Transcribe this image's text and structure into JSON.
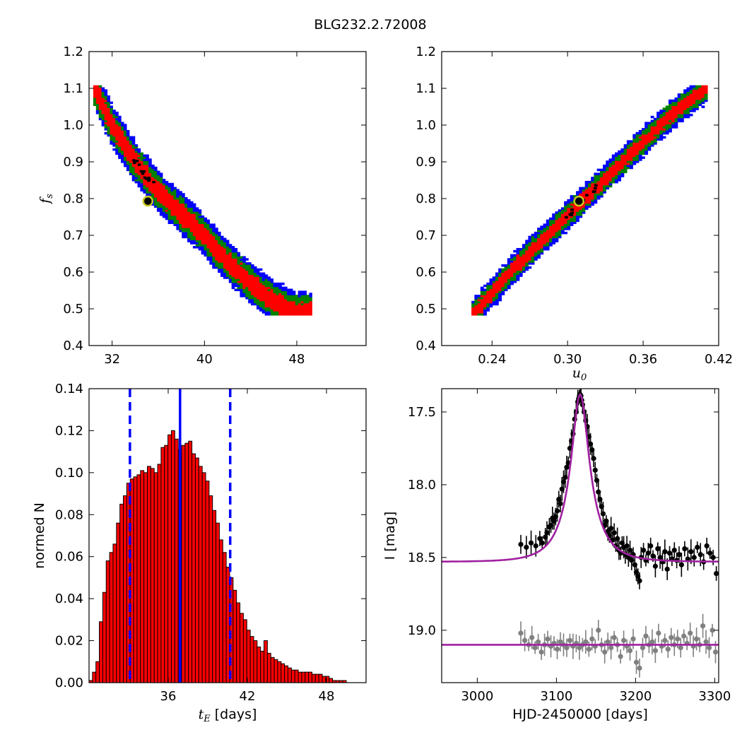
{
  "figure": {
    "title": "BLG232.2.72008"
  },
  "chart_data": [
    {
      "id": "fs_vs_tE",
      "type": "heatmap",
      "title": "",
      "xlabel": "",
      "ylabel": "f_s",
      "xlim": [
        30,
        54
      ],
      "ylim": [
        0.4,
        1.2
      ],
      "xticks": [
        32,
        40,
        48
      ],
      "yticks": [
        0.4,
        0.5,
        0.6,
        0.7,
        0.8,
        0.9,
        1.0,
        1.1,
        1.2
      ],
      "xtick_labels": [
        "32",
        "40",
        "48"
      ],
      "ytick_labels": [
        "0.4",
        "0.5",
        "0.6",
        "0.7",
        "0.8",
        "0.9",
        "1.0",
        "1.1",
        "1.2"
      ],
      "band": {
        "ridge": [
          [
            30.5,
            1.1
          ],
          [
            32.0,
            1.0
          ],
          [
            34.0,
            0.9
          ],
          [
            36.0,
            0.82
          ],
          [
            38.0,
            0.76
          ],
          [
            40.0,
            0.7
          ],
          [
            42.0,
            0.63
          ],
          [
            44.0,
            0.57
          ],
          [
            46.0,
            0.52
          ],
          [
            48.0,
            0.49
          ],
          [
            49.2,
            0.49
          ]
        ],
        "half_width_blue": 0.055,
        "half_width_green": 0.042,
        "half_width_red": 0.026
      },
      "colors": {
        "outer": "#0000ff",
        "middle": "#008000",
        "inner": "#ff0000",
        "peak": "#000000",
        "marker": "#c8c820"
      },
      "best_fit": {
        "x": 35.1,
        "y": 0.793
      }
    },
    {
      "id": "fs_vs_u0",
      "type": "heatmap",
      "title": "",
      "xlabel": "u_0",
      "ylabel": "",
      "xlim": [
        0.2,
        0.42
      ],
      "ylim": [
        0.4,
        1.2
      ],
      "xticks": [
        0.24,
        0.3,
        0.36,
        0.42
      ],
      "yticks": [
        0.4,
        0.5,
        0.6,
        0.7,
        0.8,
        0.9,
        1.0,
        1.1,
        1.2
      ],
      "xtick_labels": [
        "0.24",
        "0.30",
        "0.36",
        "0.42"
      ],
      "ytick_labels": [
        "0.4",
        "0.5",
        "0.6",
        "0.7",
        "0.8",
        "0.9",
        "1.0",
        "1.1",
        "1.2"
      ],
      "band": {
        "ridge": [
          [
            0.225,
            0.485
          ],
          [
            0.26,
            0.62
          ],
          [
            0.29,
            0.72
          ],
          [
            0.32,
            0.82
          ],
          [
            0.35,
            0.92
          ],
          [
            0.38,
            1.02
          ],
          [
            0.41,
            1.1
          ]
        ],
        "half_width_blue": 0.04,
        "half_width_green": 0.03,
        "half_width_red": 0.018
      },
      "colors": {
        "outer": "#0000ff",
        "middle": "#008000",
        "inner": "#ff0000",
        "peak": "#000000",
        "marker": "#c8c820"
      },
      "best_fit": {
        "x": 0.309,
        "y": 0.793
      }
    },
    {
      "id": "tE_histogram",
      "type": "bar",
      "title": "",
      "xlabel": "t_E  [days]",
      "ylabel": "normed N",
      "xlim": [
        30,
        51
      ],
      "ylim": [
        0.0,
        0.14
      ],
      "xticks": [
        36,
        42,
        48
      ],
      "xtick_labels": [
        "36",
        "42",
        "48"
      ],
      "yticks": [
        0.0,
        0.02,
        0.04,
        0.06,
        0.08,
        0.1,
        0.12,
        0.14
      ],
      "ytick_labels": [
        "0.00",
        "0.02",
        "0.04",
        "0.06",
        "0.08",
        "0.10",
        "0.12",
        "0.14"
      ],
      "bin_start": 30.0,
      "bin_width": 0.26,
      "values": [
        0.001,
        0.005,
        0.01,
        0.029,
        0.043,
        0.058,
        0.062,
        0.066,
        0.076,
        0.085,
        0.089,
        0.095,
        0.097,
        0.098,
        0.099,
        0.101,
        0.1,
        0.103,
        0.102,
        0.1,
        0.104,
        0.112,
        0.113,
        0.118,
        0.12,
        0.116,
        0.111,
        0.113,
        0.114,
        0.115,
        0.109,
        0.107,
        0.103,
        0.1,
        0.096,
        0.089,
        0.082,
        0.076,
        0.068,
        0.062,
        0.055,
        0.05,
        0.044,
        0.038,
        0.033,
        0.03,
        0.025,
        0.022,
        0.02,
        0.017,
        0.015,
        0.02,
        0.014,
        0.012,
        0.011,
        0.01,
        0.009,
        0.008,
        0.007,
        0.006,
        0.006,
        0.005,
        0.005,
        0.005,
        0.005,
        0.004,
        0.004,
        0.004,
        0.003,
        0.003,
        0.002,
        0.001,
        0.001,
        0.001,
        0.001
      ],
      "bar_color": "#ff0000",
      "median": 36.9,
      "interval": [
        33.1,
        40.7
      ],
      "line_color": "#0000ff"
    },
    {
      "id": "light_curve",
      "type": "scatter",
      "title": "",
      "xlabel": "HJD-2450000 [days]",
      "ylabel": "I [mag]",
      "xlim": [
        2955,
        3305
      ],
      "ylim": [
        19.36,
        17.34
      ],
      "xticks": [
        3000,
        3100,
        3200,
        3300
      ],
      "xtick_labels": [
        "3000",
        "3100",
        "3200",
        "3300"
      ],
      "yticks": [
        17.5,
        18.0,
        18.5,
        19.0
      ],
      "ytick_labels": [
        "17.5",
        "18.0",
        "18.5",
        "19.0"
      ],
      "model": {
        "t0": 3130,
        "baseline": 18.53,
        "peak": 17.38,
        "tE": 37,
        "u0": 0.31
      },
      "residual_baseline": 19.1,
      "series": [
        {
          "color": "#000000",
          "x": [
            3055,
            3062,
            3068,
            3074,
            3079,
            3082,
            3086,
            3088,
            3091,
            3093,
            3095,
            3097,
            3099,
            3101,
            3103,
            3105,
            3107,
            3109,
            3111,
            3113,
            3115,
            3117,
            3119,
            3121,
            3123,
            3125,
            3127,
            3128,
            3129,
            3130,
            3131,
            3132,
            3133,
            3135,
            3137,
            3139,
            3141,
            3143,
            3145,
            3147,
            3149,
            3151,
            3153,
            3155,
            3157,
            3159,
            3161,
            3163,
            3165,
            3167,
            3169,
            3171,
            3173,
            3175,
            3177,
            3179,
            3181,
            3183,
            3185,
            3187,
            3189,
            3191,
            3193,
            3195,
            3197,
            3199,
            3201,
            3203,
            3205,
            3207,
            3210,
            3213,
            3216,
            3219,
            3222,
            3225,
            3228,
            3231,
            3234,
            3237,
            3240,
            3243,
            3246,
            3249,
            3252,
            3255,
            3258,
            3262,
            3266,
            3270,
            3274,
            3278,
            3282,
            3286,
            3290,
            3294,
            3298,
            3302
          ],
          "y": [
            18.41,
            18.43,
            18.4,
            18.42,
            18.37,
            18.4,
            18.36,
            18.33,
            18.29,
            18.28,
            18.23,
            18.25,
            18.22,
            18.18,
            18.1,
            18.13,
            18.03,
            17.98,
            17.95,
            17.88,
            17.85,
            17.75,
            17.7,
            17.65,
            17.55,
            17.5,
            17.43,
            17.41,
            17.39,
            17.38,
            17.39,
            17.42,
            17.45,
            17.5,
            17.56,
            17.6,
            17.67,
            17.72,
            17.76,
            17.82,
            17.9,
            17.97,
            18.05,
            18.1,
            18.15,
            18.2,
            18.28,
            18.25,
            18.32,
            18.35,
            18.3,
            18.38,
            18.33,
            18.42,
            18.37,
            18.45,
            18.47,
            18.4,
            18.43,
            18.48,
            18.42,
            18.5,
            18.45,
            18.52,
            18.48,
            18.55,
            18.6,
            18.63,
            18.66,
            18.5,
            18.45,
            18.52,
            18.47,
            18.42,
            18.49,
            18.56,
            18.44,
            18.5,
            18.53,
            18.46,
            18.58,
            18.47,
            18.51,
            18.45,
            18.52,
            18.48,
            18.55,
            18.44,
            18.51,
            18.46,
            18.5,
            18.43,
            18.48,
            18.53,
            18.42,
            18.47,
            18.5,
            18.61
          ]
        },
        {
          "color": "#808080",
          "x": [
            3055,
            3060,
            3065,
            3069,
            3073,
            3077,
            3081,
            3085,
            3089,
            3093,
            3097,
            3101,
            3105,
            3109,
            3113,
            3117,
            3121,
            3125,
            3129,
            3133,
            3137,
            3141,
            3145,
            3149,
            3153,
            3157,
            3161,
            3165,
            3169,
            3173,
            3177,
            3181,
            3185,
            3189,
            3193,
            3197,
            3201,
            3205,
            3209,
            3213,
            3217,
            3221,
            3225,
            3229,
            3233,
            3237,
            3241,
            3245,
            3249,
            3253,
            3257,
            3261,
            3265,
            3269,
            3273,
            3277,
            3281,
            3285,
            3289,
            3293,
            3297,
            3301
          ],
          "y": [
            19.02,
            19.07,
            19.1,
            19.05,
            19.12,
            19.08,
            19.15,
            19.1,
            19.06,
            19.11,
            19.09,
            19.13,
            19.08,
            19.1,
            19.12,
            19.07,
            19.11,
            19.09,
            19.12,
            19.1,
            19.08,
            19.13,
            19.06,
            19.11,
            19.0,
            19.1,
            19.15,
            19.08,
            19.12,
            19.05,
            19.1,
            19.18,
            19.07,
            19.11,
            19.14,
            19.06,
            19.22,
            19.26,
            19.12,
            19.04,
            19.1,
            19.08,
            19.14,
            19.02,
            19.11,
            19.07,
            19.13,
            19.05,
            19.1,
            19.06,
            19.12,
            19.04,
            19.09,
            19.02,
            19.11,
            19.06,
            19.1,
            18.97,
            19.08,
            19.12,
            19.0,
            19.15
          ]
        }
      ],
      "model_color": "#a020a0"
    }
  ]
}
